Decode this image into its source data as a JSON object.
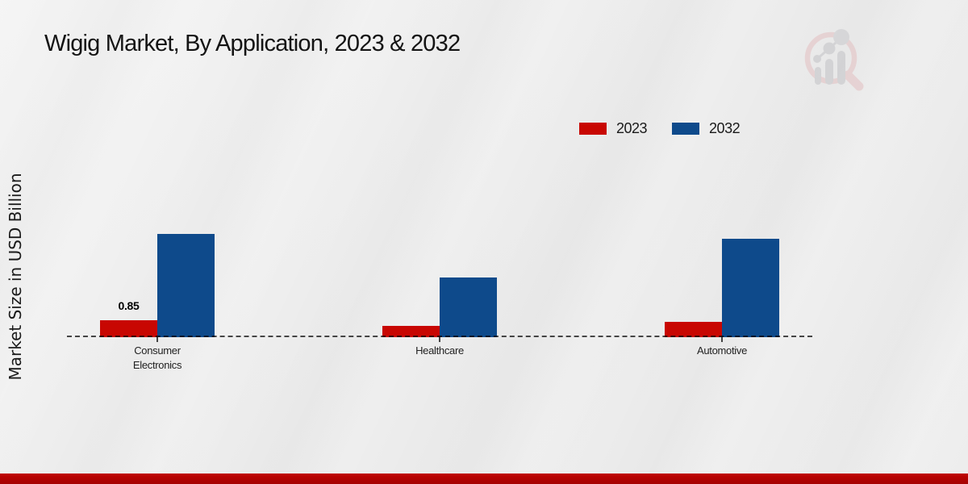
{
  "page": {
    "title": "Wigig Market, By Application, 2023 & 2032"
  },
  "chart_data": {
    "type": "bar",
    "title": "Wigig Market, By Application, 2023 & 2032",
    "xlabel": "",
    "ylabel": "Market Size in USD Billion",
    "categories": [
      "Consumer Electronics",
      "Healthcare",
      "Automotive"
    ],
    "series": [
      {
        "name": "2023",
        "color": "#c80702",
        "values": [
          0.85,
          0.55,
          0.75
        ]
      },
      {
        "name": "2032",
        "color": "#0e4a8b",
        "values": [
          5.2,
          3.0,
          4.95
        ]
      }
    ],
    "data_labels": [
      {
        "series": "2023",
        "category": "Consumer Electronics",
        "text": "0.85"
      }
    ],
    "ylim": [
      0,
      5.6
    ],
    "grid": false,
    "legend_position": "top-right",
    "baseline_style": "dashed"
  },
  "colors": {
    "accent_red": "#c80702",
    "accent_blue": "#0e4a8b",
    "footer_bar_top": "#c00302",
    "footer_bar_bottom": "#a50202",
    "background": "#ececec",
    "text": "#1a1a1a",
    "watermark_pink": "#e3bcbe",
    "watermark_gray": "#bfbfc3"
  }
}
